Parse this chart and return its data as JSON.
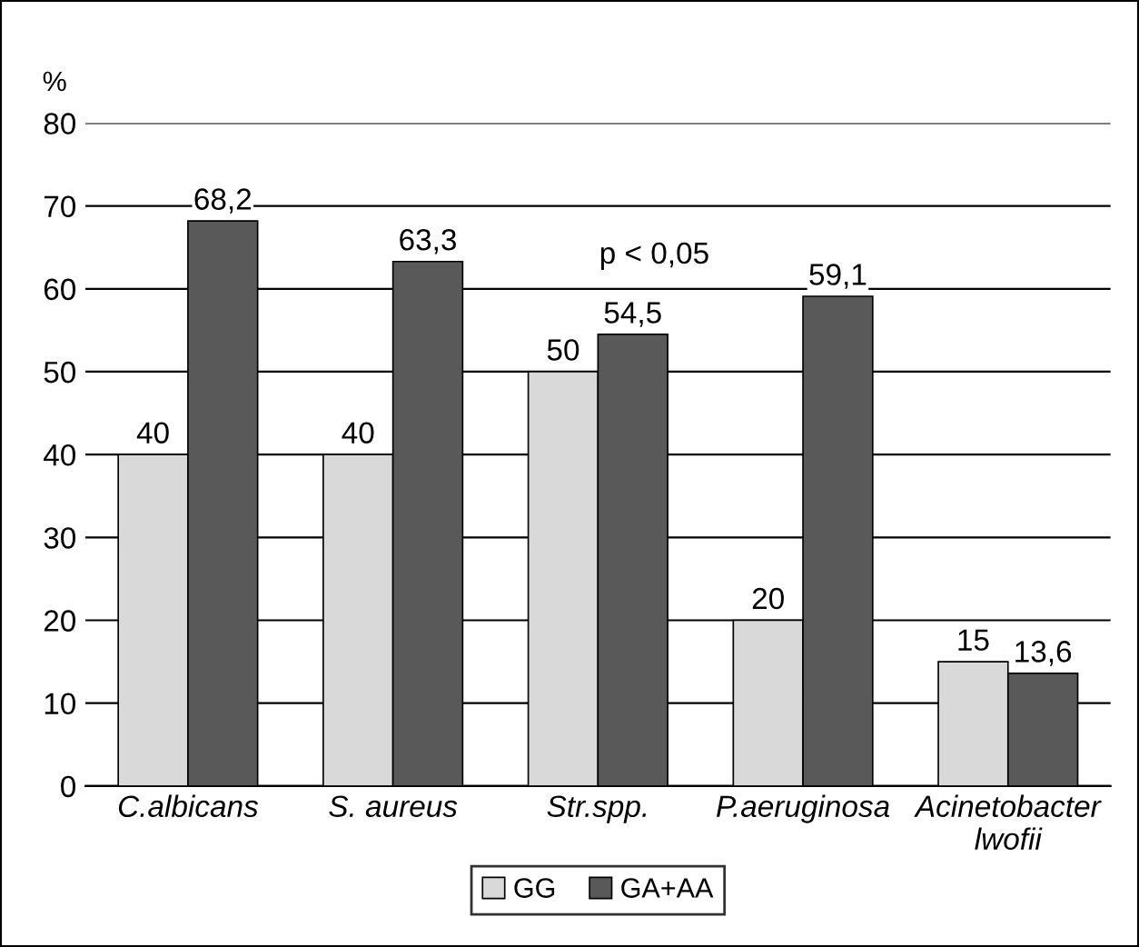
{
  "chart_data": {
    "type": "bar",
    "ylabel": "%",
    "categories": [
      "C.albicans",
      "S. aureus",
      "Str.spp.",
      "P.aeruginosa",
      "Acinetobacter\nlwofii"
    ],
    "series": [
      {
        "name": "GG",
        "color": "#d9d9d9",
        "values": [
          40,
          40,
          50,
          20,
          15
        ],
        "value_labels": [
          "40",
          "40",
          "50",
          "20",
          "15"
        ]
      },
      {
        "name": "GA+AA",
        "color": "#595959",
        "values": [
          68.2,
          63.3,
          54.5,
          59.1,
          13.6
        ],
        "value_labels": [
          "68,2",
          "63,3",
          "54,5",
          "59,1",
          "13,6"
        ]
      }
    ],
    "ylim": [
      0,
      80
    ],
    "yticks": [
      0,
      10,
      20,
      30,
      40,
      50,
      60,
      70,
      80
    ],
    "grid": "y",
    "legend": "bottom",
    "annotations": [
      "p < 0,05"
    ]
  }
}
